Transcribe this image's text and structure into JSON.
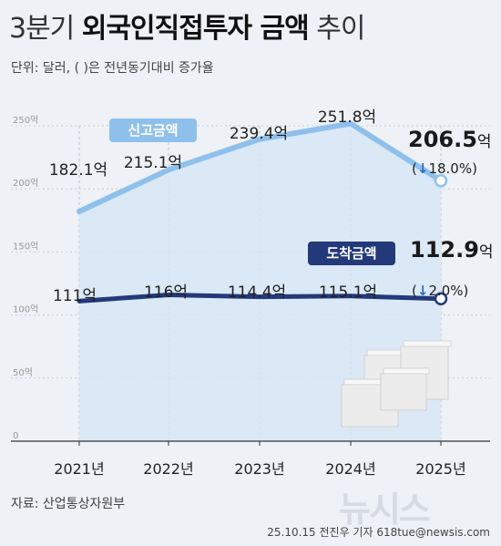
{
  "header": {
    "title_prefix": "3분기",
    "title_bold": "외국인직접투자 금액",
    "title_suffix": "추이",
    "unit_note": "단위: 달러, ( )은 전년동기대비 증가율"
  },
  "footer": {
    "source": "자료: 산업통상자원부",
    "credit": "25.10.15 전진우 기자 618tue@newsis.com",
    "logo": "뉴시스"
  },
  "colors": {
    "declared": "#8fc0ec",
    "arrived": "#23397a",
    "area": "#d7e6f4",
    "grid": "#c9cfd8",
    "down_arrow": "#2a6cc4"
  },
  "chart_data": {
    "type": "line",
    "categories": [
      "2021년",
      "2022년",
      "2023년",
      "2024년",
      "2025년"
    ],
    "y_ticks": [
      "0",
      "50억",
      "100억",
      "150억",
      "200억",
      "250억"
    ],
    "ylim": [
      0,
      250
    ],
    "series": [
      {
        "name": "신고금액",
        "values": [
          182.1,
          215.1,
          239.4,
          251.8,
          206.5
        ],
        "labels": [
          "182.1억",
          "215.1억",
          "239.4억",
          "251.8억",
          "206.5"
        ],
        "last_unit": "억",
        "change": "↓18.0%",
        "color": "#8fc0ec"
      },
      {
        "name": "도착금액",
        "values": [
          111,
          116,
          114.4,
          115.1,
          112.9
        ],
        "labels": [
          "111억",
          "116억",
          "114.4억",
          "115.1억",
          "112.9"
        ],
        "last_unit": "억",
        "change": "↓2.0%",
        "color": "#23397a"
      }
    ],
    "grid": true,
    "legend": "inline-tags"
  }
}
